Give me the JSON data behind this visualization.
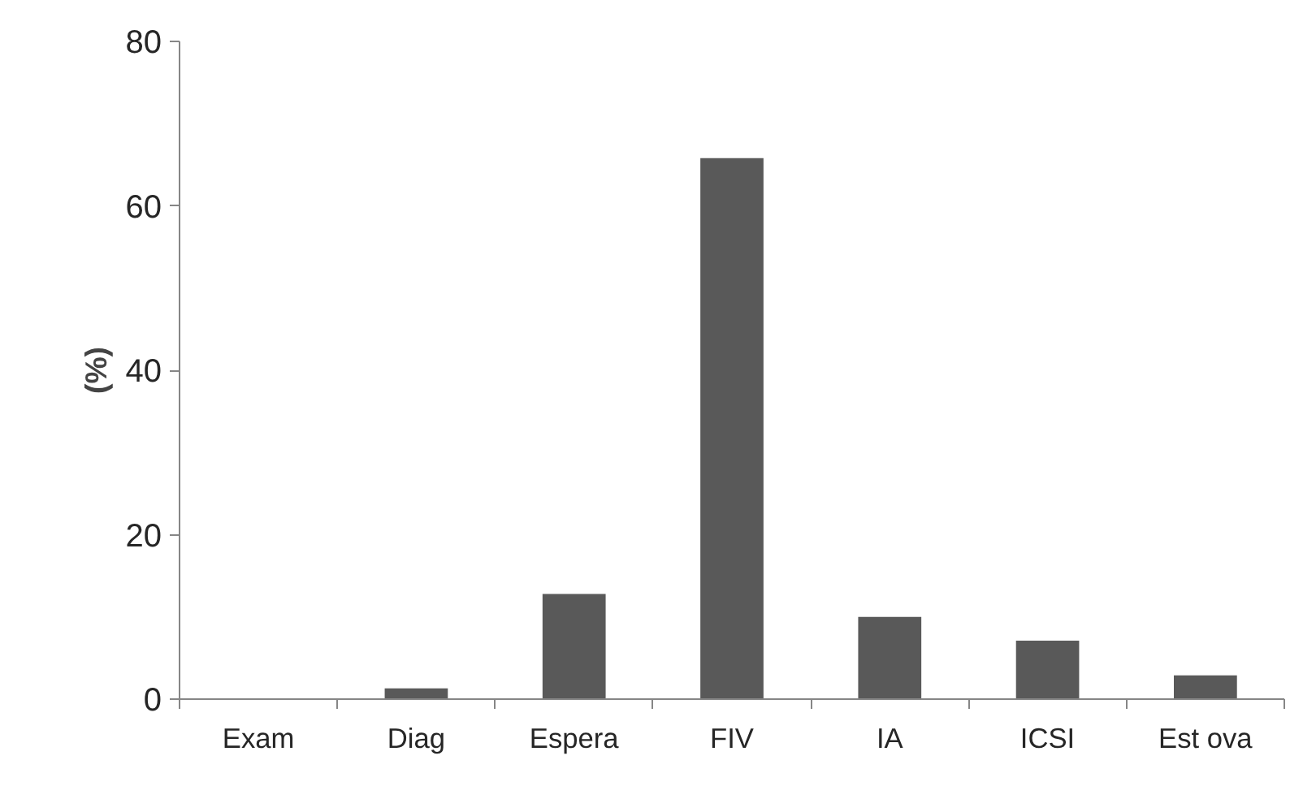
{
  "chart_data": {
    "type": "bar",
    "ylabel": "(%)",
    "categories": [
      "Exam",
      "Diag",
      "Espera",
      "FIV",
      "IA",
      "ICSI",
      "Est ova"
    ],
    "values": [
      0,
      1.3,
      12.8,
      65.8,
      10.0,
      7.1,
      2.9
    ],
    "color": "#595959",
    "ylim": [
      0,
      80
    ],
    "yticks": [
      0,
      20,
      40,
      60,
      80
    ],
    "grid": false
  }
}
